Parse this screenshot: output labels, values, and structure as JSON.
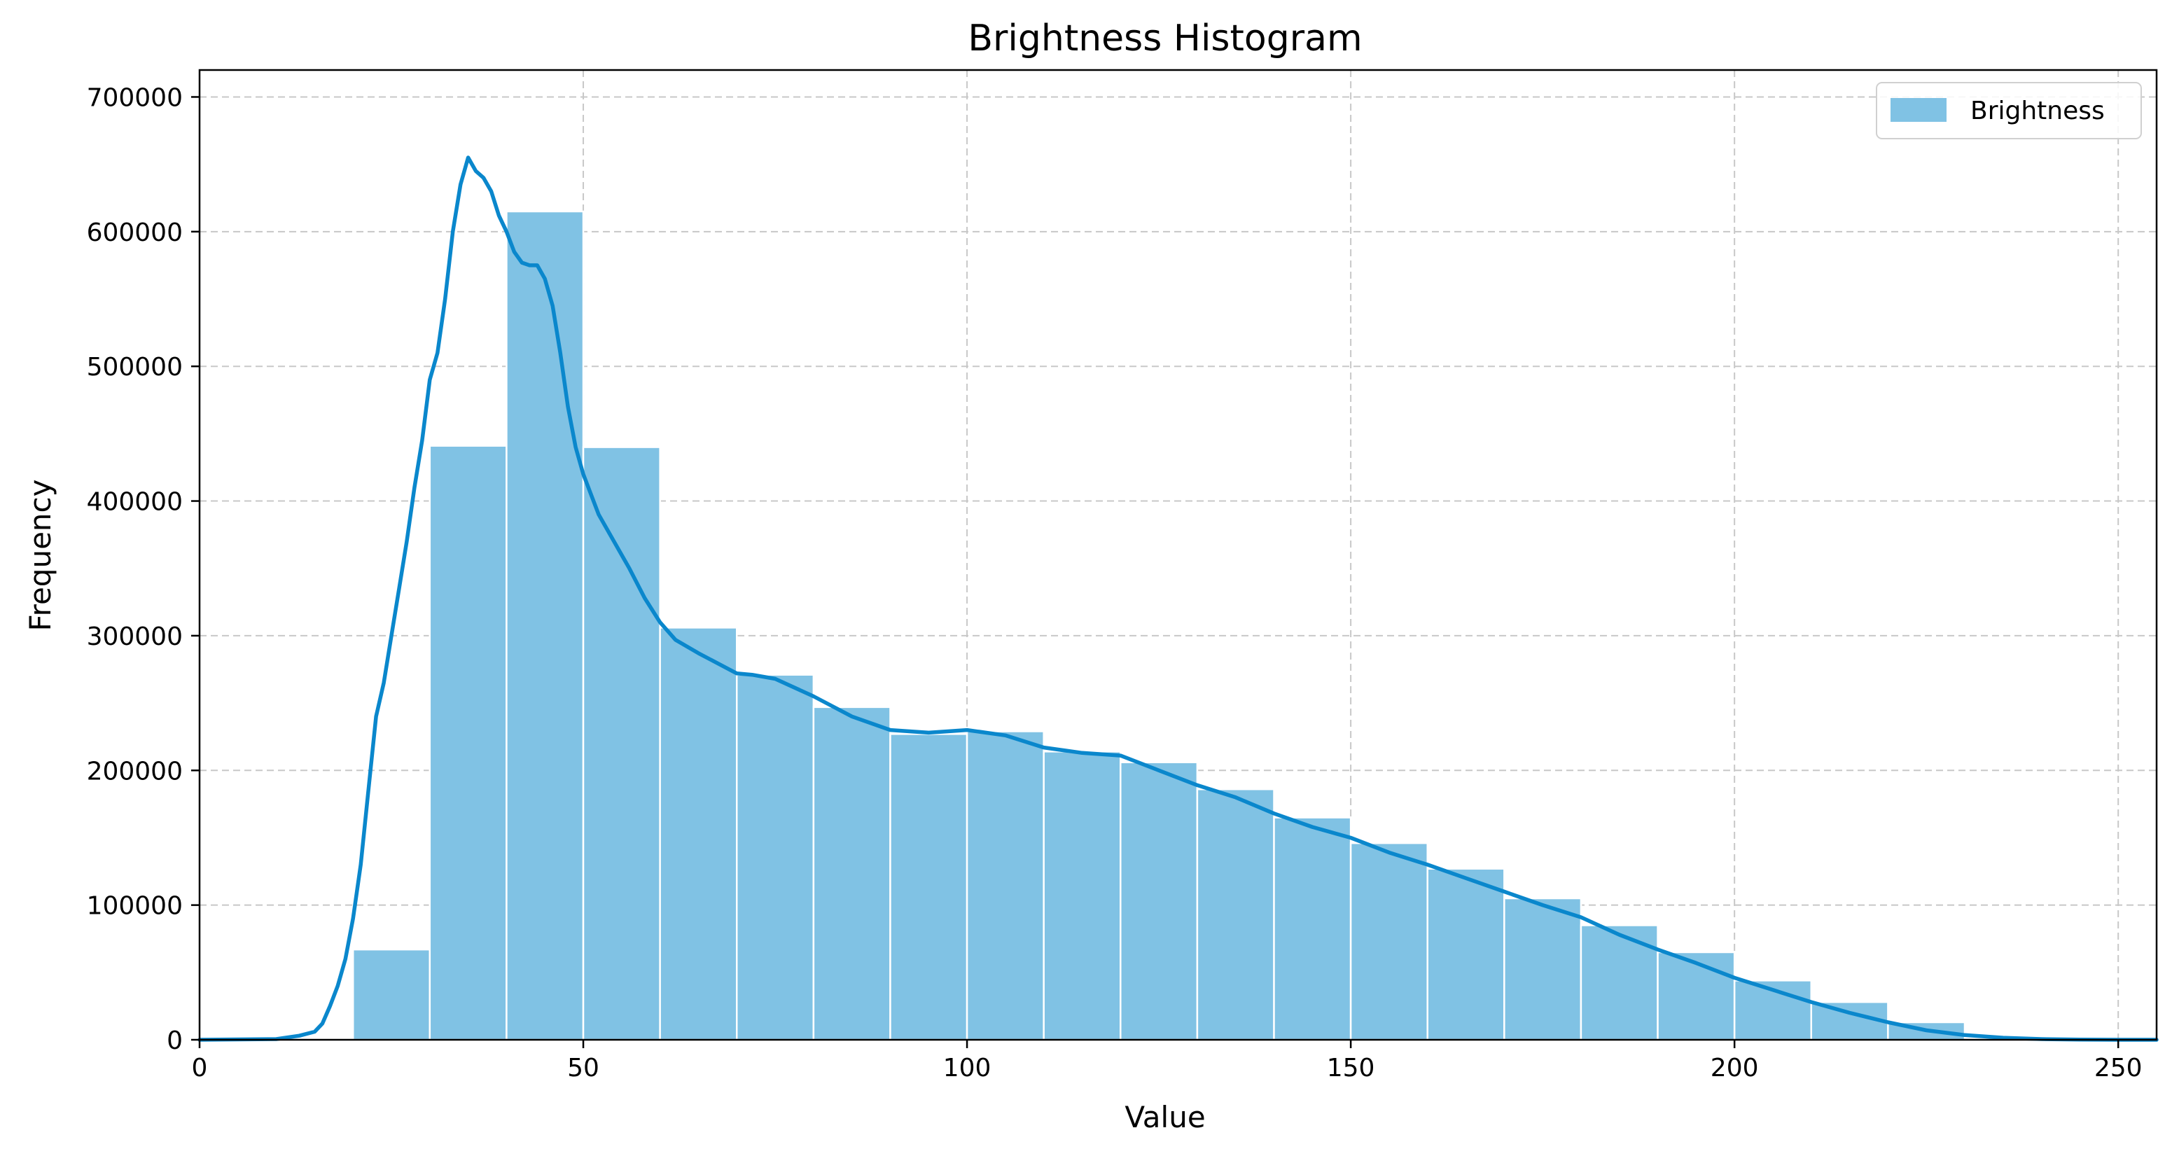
{
  "chart_data": {
    "type": "bar",
    "title": "Brightness Histogram",
    "xlabel": "Value",
    "ylabel": "Frequency",
    "xlim": [
      0,
      255
    ],
    "ylim": [
      0,
      720000
    ],
    "xticks": [
      0,
      50,
      100,
      150,
      200,
      250
    ],
    "yticks": [
      0,
      100000,
      200000,
      300000,
      400000,
      500000,
      600000,
      700000
    ],
    "xtick_labels": [
      "0",
      "50",
      "100",
      "150",
      "200",
      "250"
    ],
    "ytick_labels": [
      "0",
      "100000",
      "200000",
      "300000",
      "400000",
      "500000",
      "600000",
      "700000"
    ],
    "grid": true,
    "legend_position": "top-right",
    "legend_label": "Brightness",
    "bin_width": 10,
    "bin_starts": [
      20,
      30,
      40,
      50,
      60,
      70,
      80,
      90,
      100,
      110,
      120,
      130,
      140,
      150,
      160,
      170,
      180,
      190,
      200,
      210,
      220
    ],
    "values": [
      67000,
      441000,
      615000,
      440000,
      306000,
      271000,
      247000,
      227000,
      229000,
      214000,
      206000,
      186000,
      165000,
      146000,
      127000,
      105000,
      85000,
      65000,
      44000,
      28000,
      13000
    ],
    "kde": {
      "x": [
        0,
        10,
        13,
        15,
        16,
        17,
        18,
        19,
        20,
        21,
        22,
        23,
        24,
        25,
        26,
        27,
        28,
        29,
        30,
        31,
        32,
        33,
        34,
        35,
        36,
        37,
        38,
        39,
        40,
        41,
        42,
        43,
        44,
        45,
        46,
        47,
        48,
        49,
        50,
        52,
        54,
        56,
        58,
        60,
        62,
        65,
        68,
        70,
        72,
        75,
        80,
        85,
        90,
        95,
        100,
        105,
        110,
        115,
        120,
        125,
        130,
        135,
        140,
        145,
        150,
        155,
        160,
        165,
        170,
        175,
        180,
        185,
        190,
        195,
        200,
        205,
        210,
        215,
        220,
        225,
        230,
        235,
        240,
        245,
        250,
        255
      ],
      "y": [
        0,
        500,
        3000,
        6000,
        12000,
        25000,
        40000,
        60000,
        90000,
        130000,
        185000,
        240000,
        265000,
        300000,
        335000,
        370000,
        410000,
        445000,
        490000,
        510000,
        550000,
        600000,
        635000,
        655000,
        645000,
        640000,
        630000,
        612000,
        600000,
        585000,
        577000,
        575000,
        575000,
        565000,
        545000,
        510000,
        470000,
        440000,
        420000,
        390000,
        370000,
        350000,
        328000,
        310000,
        297000,
        287000,
        278000,
        272000,
        271000,
        268000,
        255000,
        240000,
        230000,
        228000,
        230000,
        226000,
        217000,
        213000,
        211000,
        200000,
        189000,
        180000,
        168000,
        158000,
        150000,
        139000,
        130000,
        120000,
        110000,
        100000,
        91000,
        78000,
        67000,
        57000,
        46000,
        37000,
        28000,
        20000,
        13000,
        7000,
        3500,
        1500,
        500,
        100,
        0,
        0
      ]
    },
    "colors": {
      "bar": "#80c2e4",
      "line": "#0a87cc"
    }
  }
}
